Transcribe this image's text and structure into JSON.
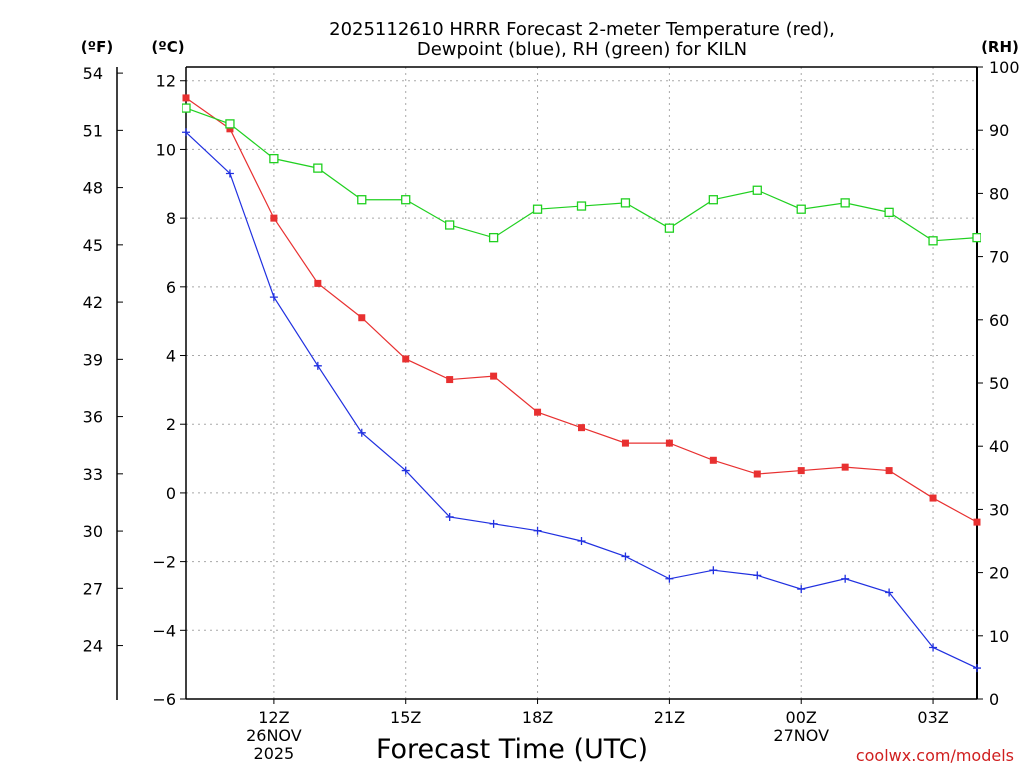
{
  "chart_data": {
    "type": "line",
    "title_line1": "2025112610 HRRR Forecast 2-meter Temperature (red),",
    "title_line2": "Dewpoint (blue), RH (green) for KILN",
    "xlabel": "Forecast Time (UTC)",
    "unit_f": "(ºF)",
    "unit_c": "(ºC)",
    "unit_rh": "(RH)",
    "credit": "coolwx.com/models",
    "x_hours": [
      0,
      1,
      2,
      3,
      4,
      5,
      6,
      7,
      8,
      9,
      10,
      11,
      12,
      13,
      14,
      15,
      16,
      17,
      18
    ],
    "x_range": [
      0,
      18
    ],
    "x_ticks": [
      {
        "hour": 2,
        "label": "12Z",
        "sub1": "26NOV",
        "sub2": "2025"
      },
      {
        "hour": 5,
        "label": "15Z",
        "sub1": "",
        "sub2": ""
      },
      {
        "hour": 8,
        "label": "18Z",
        "sub1": "",
        "sub2": ""
      },
      {
        "hour": 11,
        "label": "21Z",
        "sub1": "",
        "sub2": ""
      },
      {
        "hour": 14,
        "label": "00Z",
        "sub1": "27NOV",
        "sub2": ""
      },
      {
        "hour": 17,
        "label": "03Z",
        "sub1": "",
        "sub2": ""
      }
    ],
    "y_celsius": {
      "range": [
        -6,
        12.4
      ],
      "ticks": [
        "-6",
        "-4",
        "-2",
        "0",
        "2",
        "4",
        "6",
        "8",
        "10",
        "12"
      ]
    },
    "y_fahrenheit": {
      "ticks": [
        "24",
        "27",
        "30",
        "33",
        "36",
        "39",
        "42",
        "45",
        "48",
        "51",
        "54"
      ]
    },
    "y_rh": {
      "range": [
        0,
        100
      ],
      "ticks": [
        "0",
        "10",
        "20",
        "30",
        "40",
        "50",
        "60",
        "70",
        "80",
        "90",
        "100"
      ]
    },
    "series": [
      {
        "name": "Temperature (°C)",
        "color": "#e83030",
        "marker": "filled-square",
        "axis": "celsius",
        "values": [
          11.5,
          10.6,
          8.0,
          6.1,
          5.1,
          3.9,
          3.3,
          3.4,
          2.35,
          1.9,
          1.45,
          1.45,
          0.95,
          0.55,
          0.65,
          0.75,
          0.65,
          -0.15,
          -0.85
        ]
      },
      {
        "name": "Dewpoint (°C)",
        "color": "#2030e0",
        "marker": "plus",
        "axis": "celsius",
        "values": [
          10.5,
          9.3,
          5.7,
          3.7,
          1.75,
          0.65,
          -0.7,
          -0.9,
          -1.1,
          -1.4,
          -1.85,
          -2.5,
          -2.25,
          -2.4,
          -2.8,
          -2.5,
          -2.9,
          -4.5,
          -5.1
        ]
      },
      {
        "name": "RH (%)",
        "color": "#20d020",
        "marker": "open-square",
        "axis": "rh",
        "values": [
          93.5,
          91.0,
          85.5,
          84.0,
          79.0,
          79.0,
          75.0,
          73.0,
          77.5,
          78.0,
          78.5,
          74.5,
          79.0,
          80.5,
          77.5,
          78.5,
          77.0,
          72.5,
          73.0
        ]
      }
    ]
  }
}
